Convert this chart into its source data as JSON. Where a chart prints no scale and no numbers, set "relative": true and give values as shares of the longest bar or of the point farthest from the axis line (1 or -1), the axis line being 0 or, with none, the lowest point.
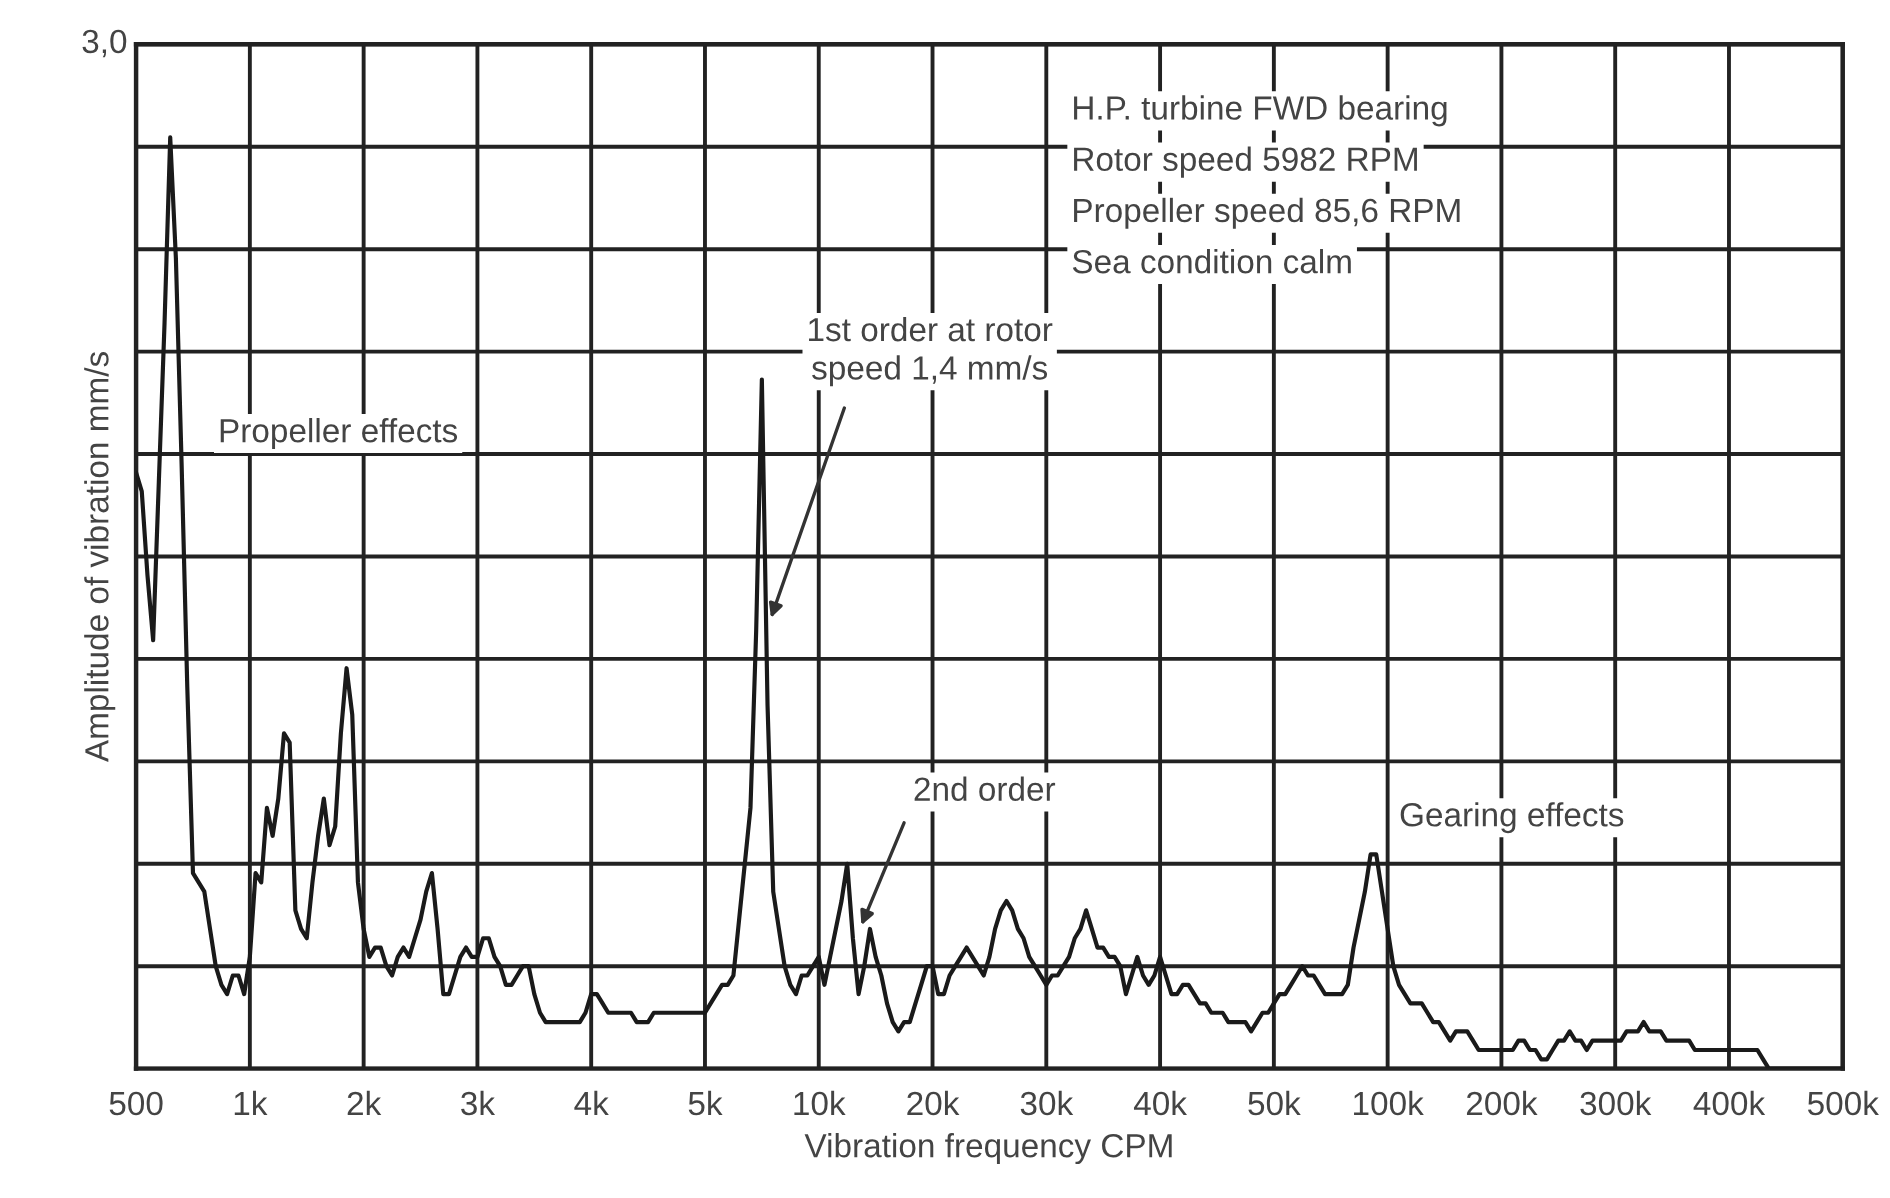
{
  "chart_data": {
    "type": "line",
    "xlabel": "Vibration frequency CPM",
    "ylabel": "Amplitude of vibration mm/s",
    "relative": true,
    "grid": true,
    "annotations": [
      "H.P. turbine FWD bearing",
      "Rotor speed 5982 RPM",
      "Propeller speed 85,6 RPM",
      "Sea condition calm",
      "Propeller effects",
      "Gearing effects",
      "3,0",
      "1st order at rotor\nspeed 1,4 mm/s",
      "2nd order"
    ],
    "categories": [
      "500",
      null,
      null,
      null,
      null,
      null,
      null,
      null,
      null,
      null,
      null,
      null,
      null,
      null,
      null,
      null,
      null,
      null,
      null,
      null,
      "1k",
      null,
      null,
      null,
      null,
      null,
      null,
      null,
      null,
      null,
      null,
      null,
      null,
      null,
      null,
      null,
      null,
      null,
      null,
      null,
      "2k",
      null,
      null,
      null,
      null,
      null,
      null,
      null,
      null,
      null,
      null,
      null,
      null,
      null,
      null,
      null,
      null,
      null,
      null,
      null,
      "3k",
      null,
      null,
      null,
      null,
      null,
      null,
      null,
      null,
      null,
      null,
      null,
      null,
      null,
      null,
      null,
      null,
      null,
      null,
      null,
      "4k",
      null,
      null,
      null,
      null,
      null,
      null,
      null,
      null,
      null,
      null,
      null,
      null,
      null,
      null,
      null,
      null,
      null,
      null,
      null,
      "5k",
      null,
      null,
      null,
      null,
      null,
      null,
      null,
      null,
      null,
      null,
      null,
      null,
      null,
      null,
      null,
      null,
      null,
      null,
      null,
      "10k",
      null,
      null,
      null,
      null,
      null,
      null,
      null,
      null,
      null,
      null,
      null,
      null,
      null,
      null,
      null,
      null,
      null,
      null,
      null,
      "20k",
      null,
      null,
      null,
      null,
      null,
      null,
      null,
      null,
      null,
      null,
      null,
      null,
      null,
      null,
      null,
      null,
      null,
      null,
      null,
      "30k",
      null,
      null,
      null,
      null,
      null,
      null,
      null,
      null,
      null,
      null,
      null,
      null,
      null,
      null,
      null,
      null,
      null,
      null,
      null,
      "40k",
      null,
      null,
      null,
      null,
      null,
      null,
      null,
      null,
      null,
      null,
      null,
      null,
      null,
      null,
      null,
      null,
      null,
      null,
      null,
      "50k",
      null,
      null,
      null,
      null,
      null,
      null,
      null,
      null,
      null,
      null,
      null,
      null,
      null,
      null,
      null,
      null,
      null,
      null,
      null,
      "100k",
      null,
      null,
      null,
      null,
      null,
      null,
      null,
      null,
      null,
      null,
      null,
      null,
      null,
      null,
      null,
      null,
      null,
      null,
      null,
      "200k",
      null,
      null,
      null,
      null,
      null,
      null,
      null,
      null,
      null,
      null,
      null,
      null,
      null,
      null,
      null,
      null,
      null,
      null,
      null,
      "300k",
      null,
      null,
      null,
      null,
      null,
      null,
      null,
      null,
      null,
      null,
      null,
      null,
      null,
      null,
      null,
      null,
      null,
      null,
      null,
      "400k",
      null,
      null,
      null,
      null,
      null,
      null,
      null,
      null,
      null,
      null,
      null,
      null,
      null,
      null,
      null,
      null,
      null,
      null,
      null,
      "500k"
    ],
    "series": [
      {
        "color": "#1a1a1a",
        "values": [
          0.64,
          0.62,
          0.53,
          0.46,
          0.63,
          0.8,
          1,
          0.87,
          0.65,
          0.41,
          0.21,
          0.2,
          0.19,
          0.15,
          0.11,
          0.09,
          0.08,
          0.1,
          0.1,
          0.08,
          0.12,
          0.21,
          0.2,
          0.28,
          0.25,
          0.29,
          0.36,
          0.35,
          0.17,
          0.15,
          0.14,
          0.2,
          0.25,
          0.29,
          0.24,
          0.26,
          0.36,
          0.43,
          0.38,
          0.2,
          0.15,
          0.12,
          0.13,
          0.13,
          0.11,
          0.1,
          0.12,
          0.13,
          0.12,
          0.14,
          0.16,
          0.19,
          0.21,
          0.15,
          0.08,
          0.08,
          0.1,
          0.12,
          0.13,
          0.12,
          0.12,
          0.14,
          0.14,
          0.12,
          0.11,
          0.09,
          0.09,
          0.1,
          0.11,
          0.11,
          0.08,
          0.06,
          0.05,
          0.05,
          0.05,
          0.05,
          0.05,
          0.05,
          0.05,
          0.06,
          0.08,
          0.08,
          0.07,
          0.06,
          0.06,
          0.06,
          0.06,
          0.06,
          0.05,
          0.05,
          0.05,
          0.06,
          0.06,
          0.06,
          0.06,
          0.06,
          0.06,
          0.06,
          0.06,
          0.06,
          0.06,
          0.07,
          0.08,
          0.09,
          0.09,
          0.1,
          0.16,
          0.22,
          0.28,
          0.47,
          0.74,
          0.39,
          0.19,
          0.15,
          0.11,
          0.09,
          0.08,
          0.1,
          0.1,
          0.11,
          0.12,
          0.09,
          0.12,
          0.15,
          0.18,
          0.22,
          0.14,
          0.08,
          0.11,
          0.15,
          0.12,
          0.1,
          0.07,
          0.05,
          0.04,
          0.05,
          0.05,
          0.07,
          0.09,
          0.11,
          0.11,
          0.08,
          0.08,
          0.1,
          0.11,
          0.12,
          0.13,
          0.12,
          0.11,
          0.1,
          0.12,
          0.15,
          0.17,
          0.18,
          0.17,
          0.15,
          0.14,
          0.12,
          0.11,
          0.1,
          0.09,
          0.1,
          0.1,
          0.11,
          0.12,
          0.14,
          0.15,
          0.17,
          0.15,
          0.13,
          0.13,
          0.12,
          0.12,
          0.11,
          0.08,
          0.1,
          0.12,
          0.1,
          0.09,
          0.1,
          0.12,
          0.1,
          0.08,
          0.08,
          0.09,
          0.09,
          0.08,
          0.07,
          0.07,
          0.06,
          0.06,
          0.06,
          0.05,
          0.05,
          0.05,
          0.05,
          0.04,
          0.05,
          0.06,
          0.06,
          0.07,
          0.08,
          0.08,
          0.09,
          0.1,
          0.11,
          0.1,
          0.1,
          0.09,
          0.08,
          0.08,
          0.08,
          0.08,
          0.09,
          0.13,
          0.16,
          0.19,
          0.23,
          0.23,
          0.19,
          0.15,
          0.11,
          0.09,
          0.08,
          0.07,
          0.07,
          0.07,
          0.06,
          0.05,
          0.05,
          0.04,
          0.03,
          0.04,
          0.04,
          0.04,
          0.03,
          0.02,
          0.02,
          0.02,
          0.02,
          0.02,
          0.02,
          0.02,
          0.03,
          0.03,
          0.02,
          0.02,
          0.01,
          0.01,
          0.02,
          0.03,
          0.03,
          0.04,
          0.03,
          0.03,
          0.02,
          0.03,
          0.03,
          0.03,
          0.03,
          0.03,
          0.03,
          0.04,
          0.04,
          0.04,
          0.05,
          0.04,
          0.04,
          0.04,
          0.03,
          0.03,
          0.03,
          0.03,
          0.03,
          0.02,
          0.02,
          0.02,
          0.02,
          0.02,
          0.02,
          0.02,
          0.02,
          0.02,
          0.02,
          0.02,
          0.02,
          0.01,
          0,
          0,
          0,
          0,
          0,
          0,
          0,
          0,
          0,
          0,
          0,
          0,
          0,
          0
        ]
      }
    ]
  }
}
